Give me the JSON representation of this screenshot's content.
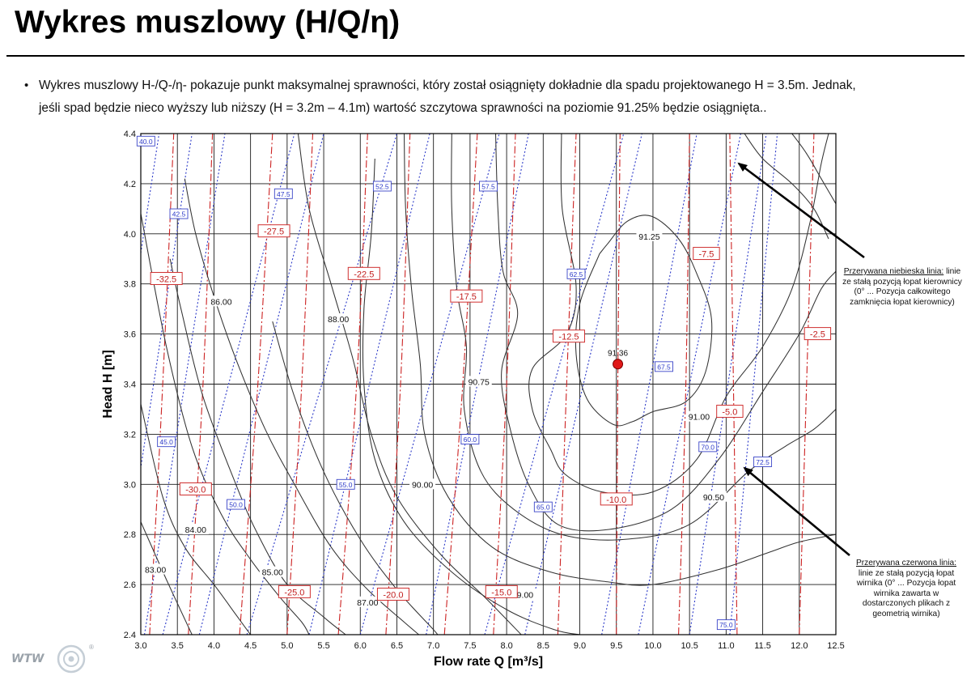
{
  "header": {
    "title": "Wykres muszlowy (H/Q/η)"
  },
  "bullet": {
    "text": "Wykres muszlowy H-/Q-/η- pokazuje punkt maksymalnej sprawności, który został osiągnięty dokładnie dla spadu projektowanego H = 3.5m. Jednak,\njeśli spad będzie nieco wyższy lub niższy (H = 3.2m – 4.1m) wartość szczytowa sprawności na poziomie 91.25% będzie osiągnięta.."
  },
  "annotations": {
    "blue": {
      "title": "Przerywana niebieska linia:",
      "body": "linie ze stałą pozycją łopat kierownicy (0° ... Pozycja całkowitego zamknięcia łopat kierownicy)"
    },
    "red": {
      "title": "Przerywana czerwona linia:",
      "body": "linie ze stałą pozycją łopat wirnika (0° ... Pozycja łopat wirnika zawarta w dostarczonych plikach z geometrią wirnika)"
    }
  },
  "logo": {
    "text": "WTW",
    "mark": "®"
  },
  "chart_data": {
    "type": "line",
    "xlabel": "Flow rate Q [m³/s]",
    "ylabel": "Head H [m]",
    "xlim": [
      3.0,
      12.5
    ],
    "ylim": [
      2.4,
      4.4
    ],
    "x_ticks": [
      "3.0",
      "3.5",
      "4.0",
      "4.5",
      "5.0",
      "5.5",
      "6.0",
      "6.5",
      "7.0",
      "7.5",
      "8.0",
      "8.5",
      "9.0",
      "9.5",
      "10.0",
      "10.5",
      "11.0",
      "11.5",
      "12.0",
      "12.5"
    ],
    "y_ticks": [
      "2.4",
      "2.6",
      "2.8",
      "3.0",
      "3.2",
      "3.4",
      "3.6",
      "3.8",
      "4.0",
      "4.2",
      "4.4"
    ],
    "grid": true,
    "colors": {
      "efficiency": "#333333",
      "guide_vane": "#2b39c8",
      "runner": "#cc2222",
      "bep": "#e01818"
    },
    "best_efficiency_point": {
      "q": 9.52,
      "h": 3.48,
      "label": "91.36"
    },
    "efficiency_contours": [
      {
        "label": "91.25",
        "label_at": [
          9.95,
          3.99
        ],
        "points": [
          [
            9.27,
            3.92
          ],
          [
            9.38,
            3.96
          ],
          [
            9.65,
            4.05
          ],
          [
            9.98,
            4.07
          ],
          [
            10.35,
            3.98
          ],
          [
            10.6,
            3.84
          ],
          [
            10.8,
            3.66
          ],
          [
            10.72,
            3.45
          ],
          [
            10.45,
            3.33
          ],
          [
            10.0,
            3.29
          ],
          [
            9.72,
            3.25
          ],
          [
            9.45,
            3.24
          ],
          [
            9.1,
            3.34
          ],
          [
            8.95,
            3.52
          ],
          [
            9.0,
            3.72
          ],
          [
            9.27,
            3.92
          ]
        ]
      },
      {
        "label": "91.00",
        "label_at": [
          10.63,
          3.27
        ],
        "points": [
          [
            8.75,
            4.4
          ],
          [
            8.76,
            4.1
          ],
          [
            8.95,
            3.79
          ],
          [
            8.82,
            3.6
          ],
          [
            8.35,
            3.46
          ],
          [
            8.35,
            3.3
          ],
          [
            8.6,
            3.14
          ],
          [
            8.8,
            3.04
          ],
          [
            9.3,
            2.97
          ],
          [
            10.0,
            2.97
          ],
          [
            10.6,
            3.1
          ],
          [
            11.0,
            3.35
          ],
          [
            11.5,
            3.55
          ],
          [
            11.9,
            3.78
          ],
          [
            12.15,
            4.05
          ],
          [
            12.3,
            4.28
          ],
          [
            12.4,
            4.4
          ]
        ]
      },
      {
        "label": "90.75",
        "label_at": [
          7.62,
          3.41
        ],
        "points": [
          [
            7.85,
            4.4
          ],
          [
            7.88,
            4.1
          ],
          [
            7.95,
            3.85
          ],
          [
            8.15,
            3.68
          ],
          [
            7.93,
            3.45
          ],
          [
            8.05,
            3.22
          ],
          [
            8.3,
            3.0
          ],
          [
            8.7,
            2.84
          ],
          [
            9.4,
            2.82
          ],
          [
            10.25,
            2.9
          ],
          [
            10.9,
            3.1
          ],
          [
            11.5,
            3.37
          ],
          [
            12.0,
            3.6
          ],
          [
            12.3,
            3.78
          ],
          [
            12.5,
            3.85
          ]
        ]
      },
      {
        "label": "90.50",
        "label_at": [
          10.83,
          2.95
        ],
        "points": [
          [
            7.25,
            4.4
          ],
          [
            7.25,
            4.1
          ],
          [
            7.32,
            3.78
          ],
          [
            7.45,
            3.55
          ],
          [
            7.42,
            3.3
          ],
          [
            7.65,
            3.05
          ],
          [
            8.1,
            2.9
          ],
          [
            8.75,
            2.8
          ],
          [
            9.6,
            2.78
          ],
          [
            10.5,
            2.84
          ],
          [
            11.3,
            3.05
          ],
          [
            11.8,
            3.15
          ],
          [
            12.2,
            3.22
          ],
          [
            12.5,
            3.3
          ]
        ]
      },
      {
        "label": "90.00",
        "label_at": [
          6.85,
          3.0
        ],
        "points": [
          [
            6.6,
            4.4
          ],
          [
            6.62,
            4.1
          ],
          [
            6.7,
            3.78
          ],
          [
            6.82,
            3.48
          ],
          [
            6.88,
            3.2
          ],
          [
            7.2,
            2.95
          ],
          [
            7.8,
            2.75
          ],
          [
            8.6,
            2.65
          ],
          [
            9.4,
            2.61
          ],
          [
            10.0,
            2.6
          ],
          [
            10.9,
            2.66
          ],
          [
            11.6,
            2.73
          ],
          [
            12.0,
            2.77
          ],
          [
            12.5,
            2.8
          ]
        ]
      },
      {
        "label": "89.00",
        "label_at": [
          8.22,
          2.56
        ],
        "points": [
          [
            6.2,
            4.3
          ],
          [
            6.15,
            4.0
          ],
          [
            6.05,
            3.7
          ],
          [
            6.05,
            3.4
          ],
          [
            6.2,
            3.1
          ],
          [
            6.6,
            2.85
          ],
          [
            7.25,
            2.65
          ],
          [
            8.0,
            2.5
          ],
          [
            8.65,
            2.42
          ],
          [
            9.0,
            2.4
          ]
        ]
      },
      {
        "label": "88.00",
        "label_at": [
          5.7,
          3.66
        ],
        "points": [
          [
            5.15,
            4.4
          ],
          [
            5.3,
            4.1
          ],
          [
            5.6,
            3.8
          ],
          [
            5.9,
            3.5
          ],
          [
            6.15,
            3.2
          ],
          [
            6.5,
            2.95
          ],
          [
            7.1,
            2.72
          ],
          [
            7.7,
            2.55
          ],
          [
            8.2,
            2.4
          ]
        ]
      },
      {
        "label": "87.00",
        "label_at": [
          6.1,
          2.53
        ],
        "points": [
          [
            4.8,
            3.65
          ],
          [
            5.1,
            3.35
          ],
          [
            5.5,
            3.05
          ],
          [
            6.0,
            2.78
          ],
          [
            6.5,
            2.58
          ],
          [
            7.0,
            2.42
          ],
          [
            7.05,
            2.4
          ]
        ]
      },
      {
        "label": "86.00",
        "label_at": [
          4.1,
          3.73
        ],
        "points": [
          [
            3.6,
            4.22
          ],
          [
            3.75,
            4.0
          ],
          [
            4.0,
            3.75
          ],
          [
            4.3,
            3.5
          ],
          [
            4.7,
            3.22
          ],
          [
            5.1,
            3.0
          ],
          [
            5.6,
            2.75
          ],
          [
            6.1,
            2.58
          ],
          [
            6.6,
            2.45
          ],
          [
            6.8,
            2.4
          ]
        ]
      },
      {
        "label": "85.00",
        "label_at": [
          4.8,
          2.65
        ],
        "points": [
          [
            3.4,
            3.9
          ],
          [
            3.55,
            3.7
          ],
          [
            3.85,
            3.35
          ],
          [
            4.3,
            3.0
          ],
          [
            4.6,
            2.8
          ],
          [
            5.0,
            2.6
          ],
          [
            5.5,
            2.47
          ],
          [
            5.8,
            2.4
          ]
        ]
      },
      {
        "label": "84.00",
        "label_at": [
          3.75,
          2.82
        ],
        "points": [
          [
            3.0,
            4.08
          ],
          [
            3.35,
            3.55
          ],
          [
            3.7,
            3.15
          ],
          [
            4.1,
            2.88
          ],
          [
            4.5,
            2.7
          ],
          [
            4.9,
            2.55
          ],
          [
            5.2,
            2.45
          ],
          [
            5.3,
            2.4
          ]
        ]
      },
      {
        "label": "83.00",
        "label_at": [
          3.2,
          2.66
        ],
        "points": [
          [
            3.0,
            3.32
          ],
          [
            3.3,
            2.95
          ],
          [
            3.6,
            2.75
          ],
          [
            4.0,
            2.6
          ],
          [
            4.3,
            2.48
          ],
          [
            4.5,
            2.4
          ]
        ]
      },
      {
        "label": "",
        "points": [
          [
            3.0,
            2.85
          ],
          [
            3.35,
            2.62
          ],
          [
            3.7,
            2.4
          ]
        ]
      },
      {
        "label": "",
        "points": [
          [
            11.25,
            4.4
          ],
          [
            11.5,
            4.3
          ],
          [
            11.9,
            4.2
          ],
          [
            12.2,
            4.1
          ],
          [
            12.4,
            3.98
          ]
        ]
      },
      {
        "label": "",
        "points": [
          [
            11.9,
            4.4
          ],
          [
            12.1,
            4.32
          ],
          [
            12.3,
            4.22
          ],
          [
            12.5,
            4.12
          ]
        ]
      }
    ],
    "guide_vane_lines": [
      {
        "label": "40.0",
        "label_at": [
          3.07,
          4.37
        ],
        "from": [
          2.2,
          2.4
        ],
        "to": [
          3.25,
          4.4
        ]
      },
      {
        "label": "42.5",
        "label_at": [
          3.52,
          4.08
        ],
        "from": [
          2.65,
          2.4
        ],
        "to": [
          3.7,
          4.4
        ]
      },
      {
        "label": "45.0",
        "label_at": [
          3.35,
          3.17
        ],
        "from": [
          3.05,
          2.4
        ],
        "to": [
          4.15,
          4.4
        ]
      },
      {
        "label": "47.5",
        "label_at": [
          4.95,
          4.16
        ],
        "from": [
          3.3,
          2.4
        ],
        "to": [
          5.1,
          4.4
        ]
      },
      {
        "label": "50.0",
        "label_at": [
          4.3,
          2.92
        ],
        "from": [
          3.8,
          2.4
        ],
        "to": [
          5.5,
          4.4
        ]
      },
      {
        "label": "52.5",
        "label_at": [
          6.3,
          4.19
        ],
        "from": [
          4.45,
          2.4
        ],
        "to": [
          6.5,
          4.4
        ]
      },
      {
        "label": "55.0",
        "label_at": [
          5.8,
          3.0
        ],
        "from": [
          5.3,
          2.4
        ],
        "to": [
          6.95,
          4.4
        ]
      },
      {
        "label": "57.5",
        "label_at": [
          7.75,
          4.19
        ],
        "from": [
          6.0,
          2.4
        ],
        "to": [
          7.9,
          4.4
        ]
      },
      {
        "label": "60.0",
        "label_at": [
          7.5,
          3.18
        ],
        "from": [
          6.9,
          2.4
        ],
        "to": [
          8.3,
          4.4
        ]
      },
      {
        "label": "62.5",
        "label_at": [
          8.95,
          3.84
        ],
        "from": [
          7.7,
          2.4
        ],
        "to": [
          9.6,
          4.4
        ]
      },
      {
        "label": "65.0",
        "label_at": [
          8.5,
          2.91
        ],
        "from": [
          8.25,
          2.4
        ],
        "to": [
          9.85,
          4.4
        ]
      },
      {
        "label": "67.5",
        "label_at": [
          10.15,
          3.47
        ],
        "from": [
          9.3,
          2.4
        ],
        "to": [
          10.6,
          4.4
        ]
      },
      {
        "label": "70.0",
        "label_at": [
          10.75,
          3.15
        ],
        "from": [
          9.8,
          2.4
        ],
        "to": [
          11.2,
          4.4
        ]
      },
      {
        "label": "72.5",
        "label_at": [
          11.5,
          3.09
        ],
        "from": [
          10.5,
          2.4
        ],
        "to": [
          11.55,
          4.4
        ]
      },
      {
        "label": "75.0",
        "label_at": [
          11.0,
          2.44
        ],
        "from": [
          11.05,
          2.4
        ],
        "to": [
          11.7,
          4.4
        ]
      }
    ],
    "runner_blade_lines": [
      {
        "label": "-32.5",
        "label_at": [
          3.35,
          3.82
        ],
        "points": [
          [
            3.12,
            2.4
          ],
          [
            3.3,
            3.4
          ],
          [
            3.45,
            4.4
          ]
        ]
      },
      {
        "label": "-30.0",
        "label_at": [
          3.75,
          2.98
        ],
        "points": [
          [
            3.65,
            2.4
          ],
          [
            3.85,
            3.4
          ],
          [
            3.98,
            4.4
          ]
        ]
      },
      {
        "label": "-27.5",
        "label_at": [
          4.82,
          4.01
        ],
        "points": [
          [
            4.35,
            2.4
          ],
          [
            4.6,
            3.4
          ],
          [
            4.8,
            4.4
          ]
        ]
      },
      {
        "label": "-25.0",
        "label_at": [
          5.1,
          2.57
        ],
        "points": [
          [
            5.0,
            2.4
          ],
          [
            5.2,
            3.4
          ],
          [
            5.35,
            4.4
          ]
        ]
      },
      {
        "label": "-22.5",
        "label_at": [
          6.05,
          3.84
        ],
        "points": [
          [
            5.7,
            2.4
          ],
          [
            5.95,
            3.4
          ],
          [
            6.1,
            4.4
          ]
        ]
      },
      {
        "label": "-20.0",
        "label_at": [
          6.45,
          2.56
        ],
        "points": [
          [
            6.35,
            2.4
          ],
          [
            6.55,
            3.4
          ],
          [
            6.68,
            4.4
          ]
        ]
      },
      {
        "label": "-17.5",
        "label_at": [
          7.45,
          3.75
        ],
        "points": [
          [
            7.15,
            2.4
          ],
          [
            7.4,
            3.4
          ],
          [
            7.6,
            4.4
          ]
        ]
      },
      {
        "label": "-15.0",
        "label_at": [
          7.93,
          2.57
        ],
        "points": [
          [
            7.82,
            2.4
          ],
          [
            8.0,
            3.4
          ],
          [
            8.12,
            4.4
          ]
        ]
      },
      {
        "label": "-12.5",
        "label_at": [
          8.85,
          3.59
        ],
        "points": [
          [
            8.7,
            2.4
          ],
          [
            8.82,
            3.4
          ],
          [
            8.95,
            4.4
          ]
        ]
      },
      {
        "label": "-10.0",
        "label_at": [
          9.5,
          2.94
        ],
        "points": [
          [
            9.5,
            2.4
          ],
          [
            9.52,
            3.4
          ],
          [
            9.55,
            4.4
          ]
        ]
      },
      {
        "label": "-7.5",
        "label_at": [
          10.73,
          3.92
        ],
        "points": [
          [
            10.35,
            2.4
          ],
          [
            10.45,
            3.4
          ],
          [
            10.5,
            4.4
          ]
        ]
      },
      {
        "label": "-5.0",
        "label_at": [
          11.05,
          3.29
        ],
        "points": [
          [
            11.15,
            2.4
          ],
          [
            11.1,
            3.4
          ],
          [
            11.05,
            4.4
          ]
        ]
      },
      {
        "label": "-2.5",
        "label_at": [
          12.25,
          3.6
        ],
        "points": [
          [
            12.0,
            2.4
          ],
          [
            12.1,
            3.4
          ],
          [
            12.2,
            4.4
          ]
        ]
      }
    ]
  }
}
